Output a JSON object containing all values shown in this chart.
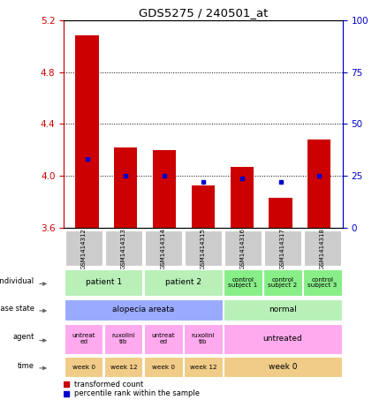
{
  "title": "GDS5275 / 240501_at",
  "samples": [
    "GSM1414312",
    "GSM1414313",
    "GSM1414314",
    "GSM1414315",
    "GSM1414316",
    "GSM1414317",
    "GSM1414318"
  ],
  "red_values": [
    5.08,
    4.22,
    4.2,
    3.93,
    4.07,
    3.83,
    4.28
  ],
  "blue_values": [
    33,
    25,
    25,
    22,
    24,
    22,
    25
  ],
  "ylim_left": [
    3.6,
    5.2
  ],
  "ylim_right": [
    0,
    100
  ],
  "yticks_left": [
    3.6,
    4.0,
    4.4,
    4.8,
    5.2
  ],
  "yticks_right": [
    0,
    25,
    50,
    75,
    100
  ],
  "bar_bottom": 3.6,
  "bar_width": 0.6,
  "annotation_rows": [
    {
      "label": "individual",
      "cells": [
        {
          "text": "patient 1",
          "colspan": 2,
          "color": "#b8f0b8"
        },
        {
          "text": "patient 2",
          "colspan": 2,
          "color": "#b8f0b8"
        },
        {
          "text": "control\nsubject 1",
          "colspan": 1,
          "color": "#88ee88"
        },
        {
          "text": "control\nsubject 2",
          "colspan": 1,
          "color": "#88ee88"
        },
        {
          "text": "control\nsubject 3",
          "colspan": 1,
          "color": "#88ee88"
        }
      ]
    },
    {
      "label": "disease state",
      "cells": [
        {
          "text": "alopecia areata",
          "colspan": 4,
          "color": "#99aaff"
        },
        {
          "text": "normal",
          "colspan": 3,
          "color": "#b8f0b8"
        }
      ]
    },
    {
      "label": "agent",
      "cells": [
        {
          "text": "untreat\ned",
          "colspan": 1,
          "color": "#ffaaee"
        },
        {
          "text": "ruxolini\ntib",
          "colspan": 1,
          "color": "#ffaaee"
        },
        {
          "text": "untreat\ned",
          "colspan": 1,
          "color": "#ffaaee"
        },
        {
          "text": "ruxolini\ntib",
          "colspan": 1,
          "color": "#ffaaee"
        },
        {
          "text": "untreated",
          "colspan": 3,
          "color": "#ffaaee"
        }
      ]
    },
    {
      "label": "time",
      "cells": [
        {
          "text": "week 0",
          "colspan": 1,
          "color": "#f0cc88"
        },
        {
          "text": "week 12",
          "colspan": 1,
          "color": "#f0cc88"
        },
        {
          "text": "week 0",
          "colspan": 1,
          "color": "#f0cc88"
        },
        {
          "text": "week 12",
          "colspan": 1,
          "color": "#f0cc88"
        },
        {
          "text": "week 0",
          "colspan": 3,
          "color": "#f0cc88"
        }
      ]
    }
  ],
  "legend_red": "transformed count",
  "legend_blue": "percentile rank within the sample",
  "red_color": "#cc0000",
  "blue_color": "#0000cc",
  "sample_bg_color": "#cccccc",
  "fig_width": 4.38,
  "fig_height": 4.53,
  "dpi": 100
}
